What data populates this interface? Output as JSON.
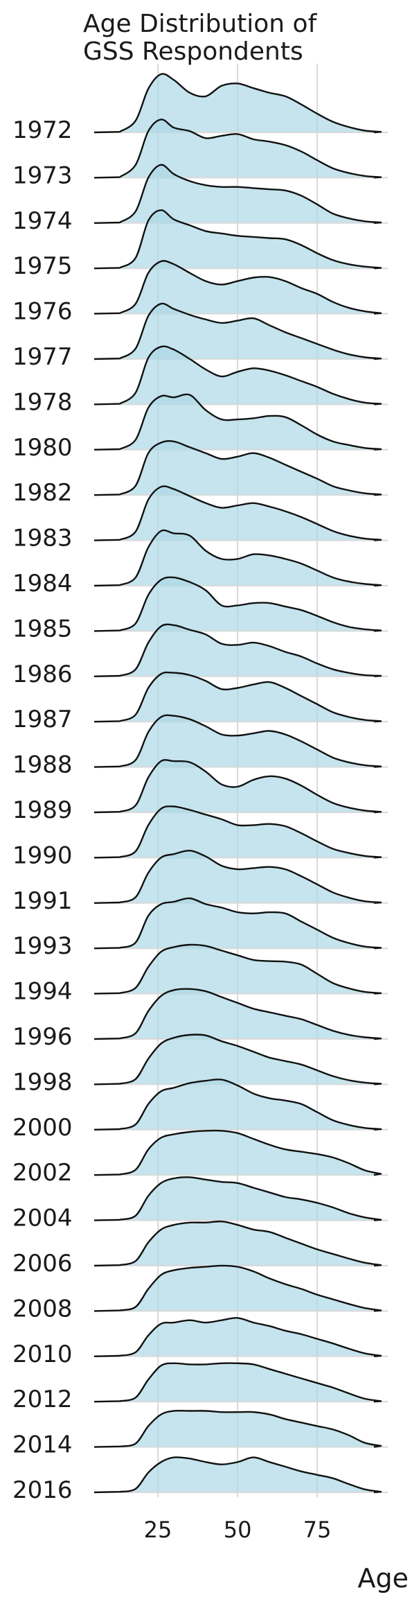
{
  "chart_data": {
    "type": "ridgeline",
    "title": [
      "Age Distribution of",
      "GSS Respondents"
    ],
    "xlabel": "Age",
    "ylabel": "",
    "xlim": [
      5,
      98
    ],
    "xticks": [
      25,
      50,
      75
    ],
    "grid": true,
    "fill_color": "#add8e6",
    "line_color": "#111111",
    "x": [
      13,
      18,
      22,
      26,
      30,
      35,
      40,
      45,
      50,
      55,
      60,
      65,
      70,
      75,
      80,
      85,
      90,
      95
    ],
    "series": [
      {
        "name": "1972",
        "values": [
          0.01,
          0.2,
          0.75,
          1.0,
          0.9,
          0.68,
          0.62,
          0.8,
          0.84,
          0.76,
          0.68,
          0.62,
          0.48,
          0.32,
          0.18,
          0.09,
          0.03,
          0.01
        ]
      },
      {
        "name": "1973",
        "values": [
          0.01,
          0.22,
          0.8,
          1.0,
          0.86,
          0.8,
          0.68,
          0.72,
          0.75,
          0.66,
          0.62,
          0.56,
          0.45,
          0.3,
          0.16,
          0.08,
          0.03,
          0.01
        ]
      },
      {
        "name": "1974",
        "values": [
          0.01,
          0.2,
          0.78,
          1.0,
          0.84,
          0.72,
          0.65,
          0.62,
          0.62,
          0.6,
          0.58,
          0.56,
          0.47,
          0.32,
          0.16,
          0.08,
          0.03,
          0.01
        ]
      },
      {
        "name": "1975",
        "values": [
          0.01,
          0.18,
          0.82,
          1.0,
          0.84,
          0.74,
          0.64,
          0.6,
          0.56,
          0.54,
          0.52,
          0.5,
          0.4,
          0.26,
          0.14,
          0.07,
          0.03,
          0.01
        ]
      },
      {
        "name": "1976",
        "values": [
          0.01,
          0.17,
          0.7,
          0.9,
          0.85,
          0.7,
          0.56,
          0.5,
          0.56,
          0.62,
          0.63,
          0.56,
          0.44,
          0.34,
          0.2,
          0.1,
          0.04,
          0.01
        ]
      },
      {
        "name": "1977",
        "values": [
          0.01,
          0.18,
          0.74,
          0.95,
          0.86,
          0.76,
          0.68,
          0.62,
          0.66,
          0.7,
          0.58,
          0.46,
          0.36,
          0.26,
          0.16,
          0.08,
          0.03,
          0.01
        ]
      },
      {
        "name": "1978",
        "values": [
          0.01,
          0.2,
          0.8,
          0.99,
          0.94,
          0.78,
          0.6,
          0.48,
          0.56,
          0.62,
          0.58,
          0.5,
          0.4,
          0.3,
          0.18,
          0.09,
          0.03,
          0.01
        ]
      },
      {
        "name": "1980",
        "values": [
          0.01,
          0.17,
          0.72,
          0.92,
          0.9,
          0.94,
          0.68,
          0.52,
          0.52,
          0.54,
          0.58,
          0.56,
          0.42,
          0.26,
          0.14,
          0.08,
          0.03,
          0.01
        ]
      },
      {
        "name": "1982",
        "values": [
          0.01,
          0.16,
          0.72,
          0.9,
          0.92,
          0.82,
          0.72,
          0.62,
          0.66,
          0.72,
          0.64,
          0.52,
          0.4,
          0.28,
          0.15,
          0.08,
          0.03,
          0.01
        ]
      },
      {
        "name": "1983",
        "values": [
          0.01,
          0.15,
          0.7,
          0.92,
          0.88,
          0.76,
          0.64,
          0.56,
          0.6,
          0.64,
          0.58,
          0.5,
          0.4,
          0.28,
          0.16,
          0.08,
          0.03,
          0.01
        ]
      },
      {
        "name": "1984",
        "values": [
          0.01,
          0.14,
          0.66,
          0.94,
          0.9,
          0.86,
          0.6,
          0.46,
          0.46,
          0.54,
          0.52,
          0.46,
          0.38,
          0.26,
          0.14,
          0.07,
          0.03,
          0.01
        ]
      },
      {
        "name": "1985",
        "values": [
          0.01,
          0.13,
          0.62,
          0.88,
          0.92,
          0.84,
          0.7,
          0.44,
          0.44,
          0.48,
          0.48,
          0.42,
          0.36,
          0.26,
          0.15,
          0.07,
          0.03,
          0.01
        ]
      },
      {
        "name": "1986",
        "values": [
          0.01,
          0.12,
          0.58,
          0.86,
          0.88,
          0.8,
          0.72,
          0.56,
          0.54,
          0.58,
          0.52,
          0.42,
          0.34,
          0.22,
          0.12,
          0.06,
          0.02,
          0.01
        ]
      },
      {
        "name": "1987",
        "values": [
          0.01,
          0.12,
          0.58,
          0.82,
          0.84,
          0.8,
          0.7,
          0.56,
          0.58,
          0.64,
          0.68,
          0.58,
          0.44,
          0.3,
          0.16,
          0.08,
          0.03,
          0.01
        ]
      },
      {
        "name": "1988",
        "values": [
          0.01,
          0.12,
          0.6,
          0.86,
          0.88,
          0.82,
          0.7,
          0.56,
          0.54,
          0.58,
          0.62,
          0.56,
          0.44,
          0.3,
          0.16,
          0.08,
          0.03,
          0.01
        ]
      },
      {
        "name": "1989",
        "values": [
          0.01,
          0.12,
          0.6,
          0.88,
          0.88,
          0.86,
          0.7,
          0.48,
          0.44,
          0.56,
          0.62,
          0.58,
          0.46,
          0.3,
          0.16,
          0.08,
          0.03,
          0.01
        ]
      },
      {
        "name": "1990",
        "values": [
          0.01,
          0.11,
          0.56,
          0.84,
          0.88,
          0.82,
          0.74,
          0.66,
          0.56,
          0.56,
          0.58,
          0.54,
          0.42,
          0.28,
          0.15,
          0.08,
          0.03,
          0.01
        ]
      },
      {
        "name": "1991",
        "values": [
          0.01,
          0.1,
          0.52,
          0.78,
          0.84,
          0.9,
          0.8,
          0.64,
          0.58,
          0.6,
          0.62,
          0.58,
          0.46,
          0.32,
          0.18,
          0.09,
          0.03,
          0.01
        ]
      },
      {
        "name": "1993",
        "values": [
          0.01,
          0.1,
          0.56,
          0.76,
          0.8,
          0.86,
          0.76,
          0.7,
          0.62,
          0.6,
          0.62,
          0.6,
          0.46,
          0.32,
          0.18,
          0.09,
          0.03,
          0.01
        ]
      },
      {
        "name": "1994",
        "values": [
          0.01,
          0.1,
          0.46,
          0.72,
          0.8,
          0.84,
          0.82,
          0.74,
          0.66,
          0.58,
          0.56,
          0.55,
          0.5,
          0.34,
          0.18,
          0.09,
          0.03,
          0.01
        ]
      },
      {
        "name": "1996",
        "values": [
          0.01,
          0.1,
          0.48,
          0.74,
          0.84,
          0.86,
          0.82,
          0.72,
          0.62,
          0.52,
          0.46,
          0.4,
          0.34,
          0.24,
          0.14,
          0.07,
          0.03,
          0.01
        ]
      },
      {
        "name": "1998",
        "values": [
          0.01,
          0.09,
          0.44,
          0.7,
          0.8,
          0.85,
          0.84,
          0.74,
          0.66,
          0.56,
          0.46,
          0.4,
          0.34,
          0.24,
          0.14,
          0.07,
          0.03,
          0.01
        ]
      },
      {
        "name": "2000",
        "values": [
          0.01,
          0.09,
          0.44,
          0.66,
          0.72,
          0.8,
          0.84,
          0.86,
          0.76,
          0.62,
          0.54,
          0.5,
          0.44,
          0.3,
          0.16,
          0.08,
          0.03,
          0.01
        ]
      },
      {
        "name": "2002",
        "values": [
          0.01,
          0.09,
          0.44,
          0.64,
          0.7,
          0.74,
          0.76,
          0.76,
          0.72,
          0.62,
          0.52,
          0.44,
          0.4,
          0.36,
          0.3,
          0.2,
          0.08,
          0.02
        ]
      },
      {
        "name": "2004",
        "values": [
          0.01,
          0.08,
          0.42,
          0.64,
          0.72,
          0.74,
          0.7,
          0.66,
          0.64,
          0.56,
          0.48,
          0.4,
          0.36,
          0.3,
          0.22,
          0.12,
          0.05,
          0.01
        ]
      },
      {
        "name": "2006",
        "values": [
          0.01,
          0.08,
          0.4,
          0.62,
          0.7,
          0.74,
          0.74,
          0.76,
          0.7,
          0.62,
          0.58,
          0.48,
          0.38,
          0.28,
          0.2,
          0.12,
          0.05,
          0.01
        ]
      },
      {
        "name": "2008",
        "values": [
          0.01,
          0.07,
          0.38,
          0.62,
          0.7,
          0.74,
          0.76,
          0.78,
          0.76,
          0.68,
          0.56,
          0.46,
          0.38,
          0.28,
          0.2,
          0.12,
          0.05,
          0.01
        ]
      },
      {
        "name": "2010",
        "values": [
          0.01,
          0.07,
          0.36,
          0.56,
          0.58,
          0.62,
          0.58,
          0.62,
          0.66,
          0.58,
          0.52,
          0.44,
          0.38,
          0.3,
          0.22,
          0.13,
          0.05,
          0.01
        ]
      },
      {
        "name": "2012",
        "values": [
          0.01,
          0.07,
          0.38,
          0.62,
          0.66,
          0.64,
          0.64,
          0.66,
          0.66,
          0.64,
          0.56,
          0.48,
          0.4,
          0.32,
          0.24,
          0.14,
          0.05,
          0.01
        ]
      },
      {
        "name": "2014",
        "values": [
          0.01,
          0.06,
          0.36,
          0.56,
          0.62,
          0.62,
          0.62,
          0.6,
          0.6,
          0.6,
          0.56,
          0.48,
          0.42,
          0.36,
          0.3,
          0.2,
          0.07,
          0.02
        ]
      },
      {
        "name": "2016",
        "values": [
          0.01,
          0.06,
          0.34,
          0.52,
          0.6,
          0.58,
          0.52,
          0.48,
          0.52,
          0.6,
          0.52,
          0.44,
          0.36,
          0.3,
          0.24,
          0.14,
          0.05,
          0.01
        ]
      }
    ]
  }
}
